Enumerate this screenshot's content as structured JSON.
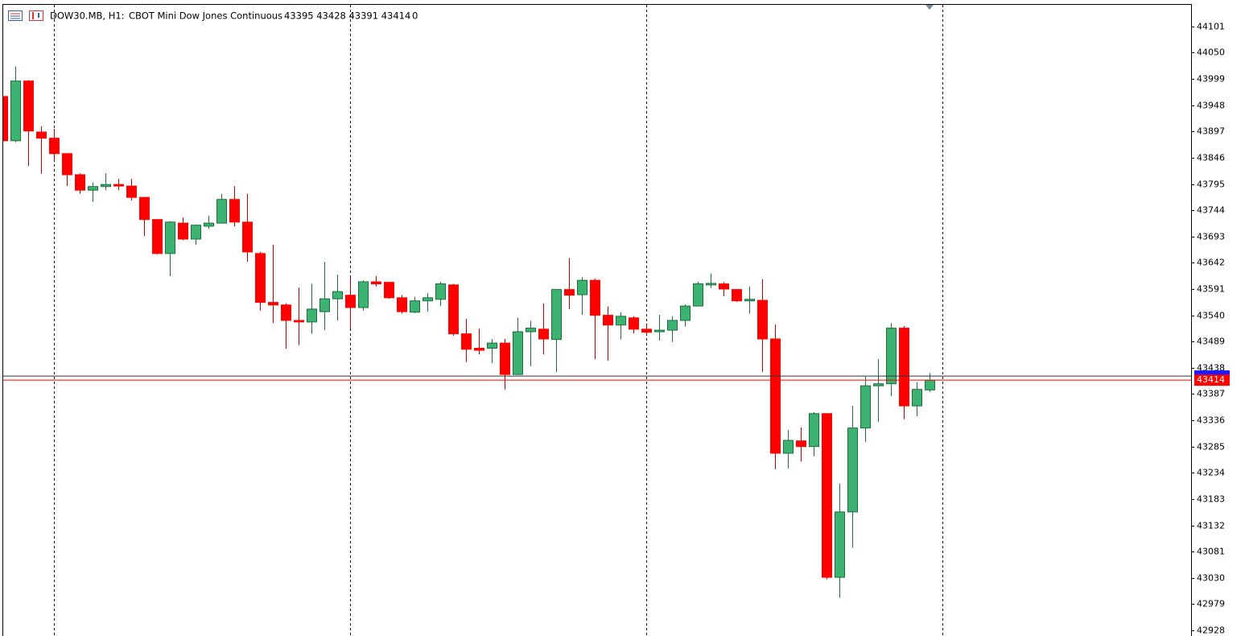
{
  "chart_data": {
    "type": "candlestick",
    "symbol": "DOW30.MB, H1:",
    "description": "CBOT Mini Dow Jones Continuous",
    "ohlc_text": "43395 43428 43391 43414",
    "volume_text": "0",
    "open": [
      43965,
      43879,
      43995,
      43896,
      43884,
      43854,
      43813,
      43783,
      43790,
      43794,
      43791,
      43769,
      43726,
      43660,
      43719,
      43688,
      43713,
      43719,
      43765,
      43721,
      43660,
      43565,
      43560,
      43530,
      43527,
      43547,
      43572,
      43579,
      43555,
      43605,
      43604,
      43574,
      43546,
      43568,
      43571,
      43599,
      43504,
      43476,
      43476,
      43486,
      43425,
      43508,
      43513,
      43493,
      43590,
      43580,
      43608,
      43540,
      43521,
      43535,
      43513,
      43508,
      43511,
      43530,
      43558,
      43599,
      43601,
      43590,
      43568,
      43569,
      43494,
      43272,
      43296,
      43285,
      43349,
      43031,
      43158,
      43321,
      43403,
      43407,
      43515,
      43364,
      43395
    ],
    "high": [
      43965,
      44023,
      43997,
      43907,
      43902,
      43855,
      43816,
      43798,
      43816,
      43805,
      43805,
      43769,
      43727,
      43723,
      43730,
      43716,
      43733,
      43776,
      43791,
      43776,
      43663,
      43677,
      43563,
      43594,
      43601,
      43644,
      43619,
      43613,
      43608,
      43616,
      43605,
      43579,
      43576,
      43583,
      43605,
      43601,
      43533,
      43514,
      43494,
      43494,
      43535,
      43529,
      43563,
      43591,
      43651,
      43614,
      43611,
      43557,
      43546,
      43538,
      43521,
      43541,
      43538,
      43561,
      43605,
      43621,
      43604,
      43591,
      43596,
      43610,
      43522,
      43317,
      43322,
      43352,
      43349,
      43213,
      43364,
      43422,
      43455,
      43525,
      43519,
      43410,
      43428
    ],
    "low": [
      43879,
      43876,
      43830,
      43815,
      43840,
      43791,
      43776,
      43760,
      43783,
      43783,
      43763,
      43694,
      43658,
      43616,
      43686,
      43677,
      43708,
      43718,
      43713,
      43644,
      43549,
      43525,
      43475,
      43482,
      43504,
      43511,
      43530,
      43514,
      43549,
      43596,
      43572,
      43543,
      43544,
      43547,
      43558,
      43500,
      43449,
      43464,
      43447,
      43396,
      43424,
      43441,
      43464,
      43430,
      43552,
      43541,
      43455,
      43452,
      43493,
      43505,
      43502,
      43491,
      43488,
      43518,
      43557,
      43593,
      43577,
      43566,
      43543,
      43430,
      43241,
      43242,
      43256,
      43266,
      43027,
      42991,
      43088,
      43294,
      43333,
      43383,
      43338,
      43344,
      43391
    ],
    "close": [
      43879,
      43995,
      43898,
      43884,
      43854,
      43813,
      43783,
      43790,
      43794,
      43791,
      43769,
      43726,
      43660,
      43721,
      43688,
      43715,
      43719,
      43765,
      43721,
      43663,
      43565,
      43560,
      43530,
      43527,
      43552,
      43572,
      43586,
      43555,
      43605,
      43601,
      43574,
      43547,
      43568,
      43574,
      43601,
      43504,
      43474,
      43472,
      43486,
      43425,
      43508,
      43515,
      43494,
      43590,
      43579,
      43608,
      43540,
      43521,
      43538,
      43513,
      43507,
      43511,
      43530,
      43558,
      43601,
      43602,
      43591,
      43568,
      43571,
      43494,
      43272,
      43297,
      43285,
      43349,
      43031,
      43158,
      43321,
      43403,
      43407,
      43515,
      43364,
      43396,
      43414
    ],
    "up_color": "#3cb371",
    "up_outline": "#1e6b3e",
    "down_color": "#ff0000",
    "down_wick": "#c00000",
    "bid": 43414,
    "bid_color": "#ff0000",
    "ask": 43422,
    "ask_color": "#1a1aff",
    "period_separators": [
      4,
      27,
      50,
      73
    ],
    "ylim": [
      42917,
      44143
    ],
    "yticks": [
      44101,
      44050,
      43999,
      43948,
      43897,
      43846,
      43795,
      43744,
      43693,
      43642,
      43591,
      43540,
      43489,
      43438,
      43387,
      43336,
      43285,
      43234,
      43183,
      43132,
      43081,
      43030,
      42979,
      42928
    ]
  }
}
